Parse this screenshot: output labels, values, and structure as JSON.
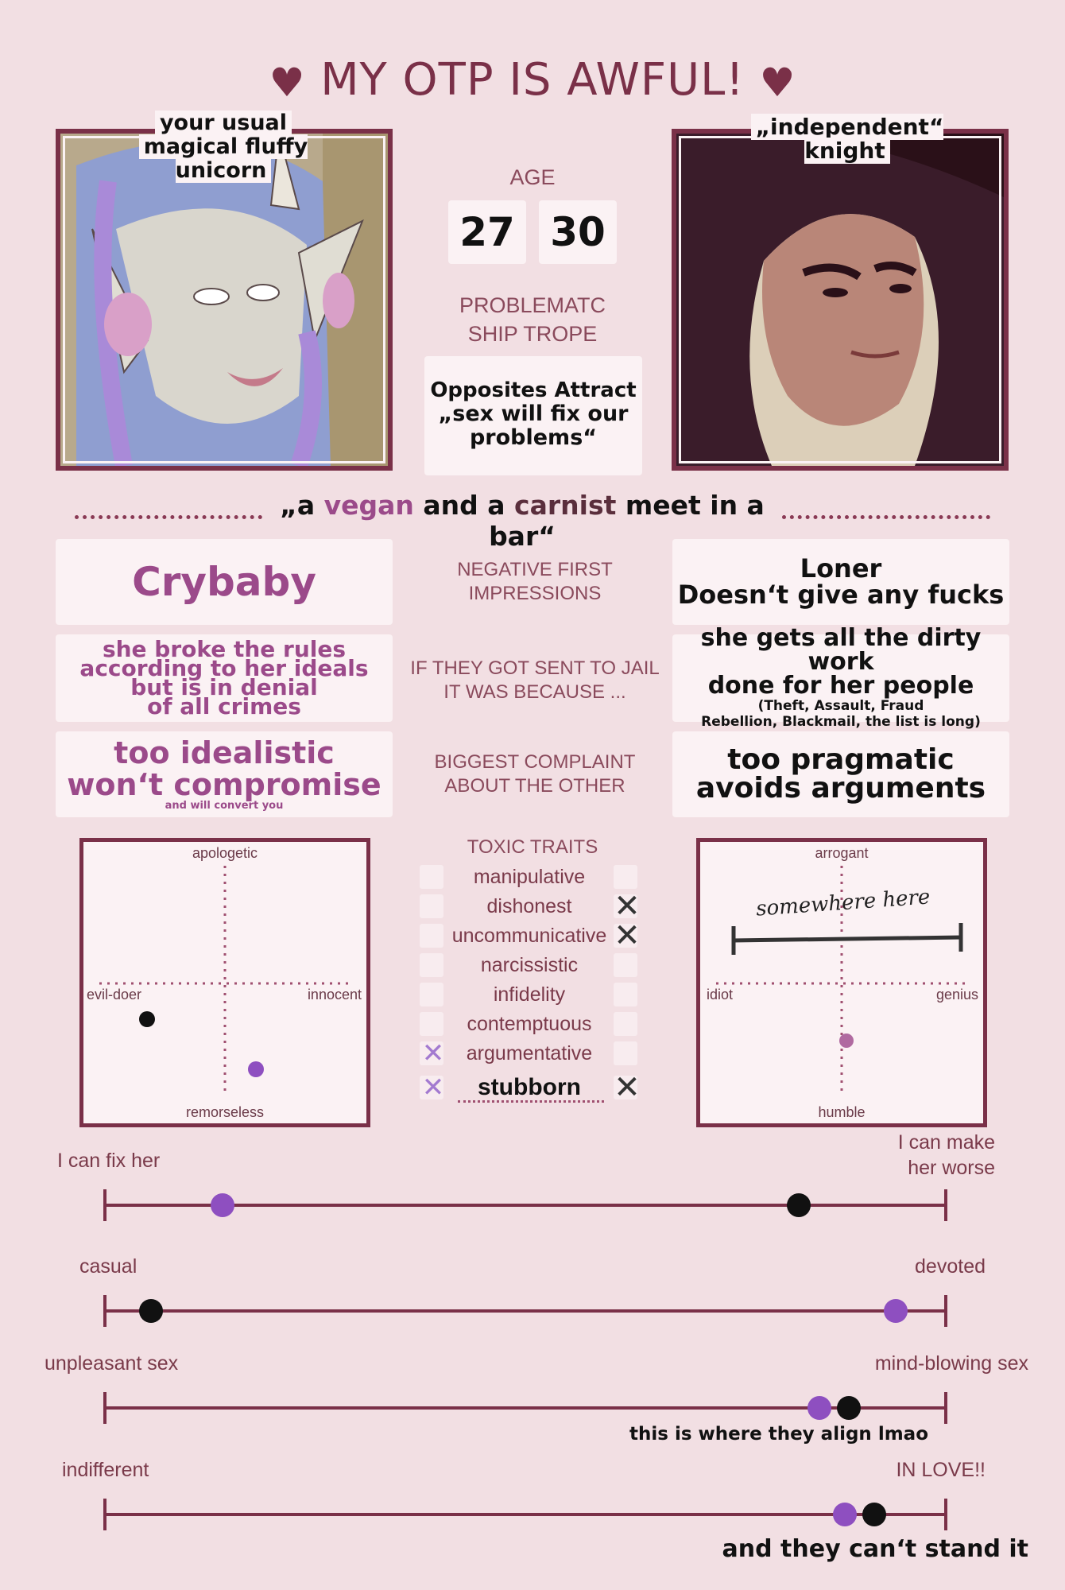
{
  "title": "MY OTP IS AWFUL!",
  "colors": {
    "background": "#f2dfe3",
    "wine": "#7a3048",
    "purple_dot": "#8e4fc0",
    "black_dot": "#111111",
    "magenta_text": "#9b4a8a"
  },
  "left_character": {
    "caption_line1": "your usual",
    "caption_line2": "magical fluffy unicorn"
  },
  "right_character": {
    "caption": "„independent“ knight"
  },
  "age": {
    "label": "AGE",
    "left": "27",
    "right": "30"
  },
  "trope": {
    "label_line1": "PROBLEMATC",
    "label_line2": "SHIP TROPE",
    "line1": "Opposites Attract",
    "line2": "„sex will fix our",
    "line3": "problems“"
  },
  "tagline": {
    "open": "„a ",
    "vegan": "vegan",
    "mid": " and a ",
    "carnist": "carnist",
    "end": " meet in a bar“"
  },
  "rows": [
    {
      "label_line1": "NEGATIVE FIRST",
      "label_line2": "IMPRESSIONS",
      "left": [
        "Crybaby"
      ],
      "right": [
        "Loner",
        "Doesn‘t give any fucks"
      ]
    },
    {
      "label_line1": "IF THEY GOT SENT TO JAIL",
      "label_line2": "IT WAS BECAUSE ...",
      "left": [
        "she broke the rules",
        "according to her ideals",
        "but is in denial",
        "of all crimes"
      ],
      "right": [
        "she gets all the dirty work",
        "done for her people"
      ],
      "right_small": [
        "(Theft, Assault, Fraud",
        "Rebellion, Blackmail, the list is long)"
      ]
    },
    {
      "label_line1": "BIGGEST COMPLAINT",
      "label_line2": "ABOUT THE OTHER",
      "left": [
        "too idealistic",
        "won‘t compromise"
      ],
      "left_small": "and will convert you",
      "right": [
        "too pragmatic",
        "avoids arguments"
      ]
    }
  ],
  "morality_chart": {
    "top": "apologetic",
    "bottom": "remorseless",
    "left": "evil-doer",
    "right": "innocent"
  },
  "intellect_chart": {
    "top": "arrogant",
    "bottom": "humble",
    "left": "idiot",
    "right": "genius",
    "handwritten_note": "somewhere here"
  },
  "toxic_traits": {
    "label": "TOXIC TRAITS",
    "items": [
      {
        "name": "manipulative",
        "left": false,
        "right": false
      },
      {
        "name": "dishonest",
        "left": false,
        "right": true
      },
      {
        "name": "uncommunicative",
        "left": false,
        "right": true
      },
      {
        "name": "narcissistic",
        "left": false,
        "right": false
      },
      {
        "name": "infidelity",
        "left": false,
        "right": false
      },
      {
        "name": "contemptuous",
        "left": false,
        "right": false
      },
      {
        "name": "argumentative",
        "left": true,
        "right": false
      },
      {
        "name": "stubborn",
        "left": true,
        "right": true
      }
    ]
  },
  "scales": [
    {
      "left_label": "I can fix her",
      "right_label_line1": "I can make",
      "right_label_line2": "her worse",
      "purple": 0.14,
      "black": 0.825,
      "note": ""
    },
    {
      "left_label": "casual",
      "right_label": "devoted",
      "purple": 0.94,
      "black": 0.055,
      "note": ""
    },
    {
      "left_label": "unpleasant sex",
      "right_label": "mind-blowing sex",
      "purple": 0.85,
      "black": 0.885,
      "note": "this is where they align lmao"
    },
    {
      "left_label": "indifferent",
      "right_label": "IN LOVE!!",
      "purple": 0.88,
      "black": 0.915,
      "note": "and they can‘t stand it"
    }
  ]
}
